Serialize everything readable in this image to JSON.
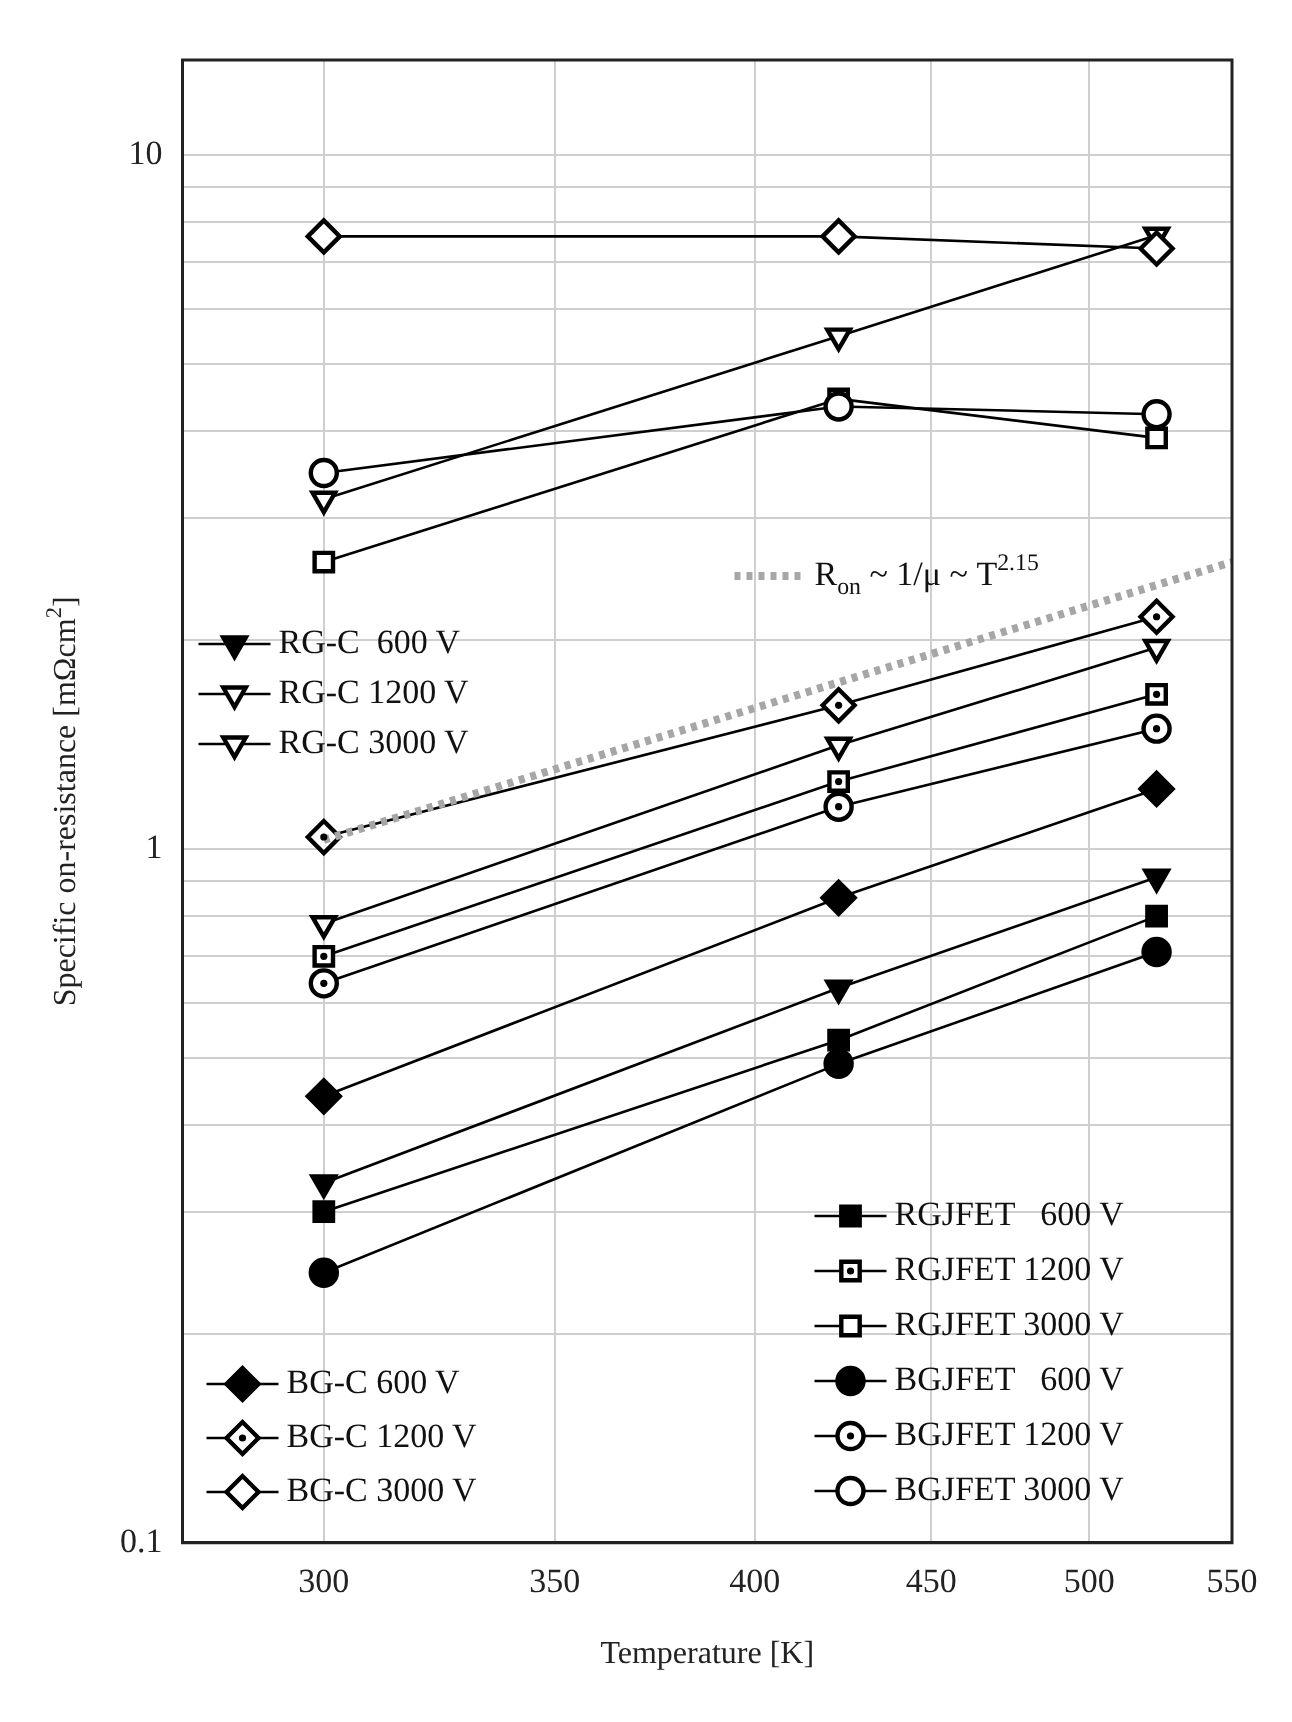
{
  "chart_data": {
    "type": "line",
    "xlabel": "Temperature [K]",
    "ylabel": "Specific on-resistance [mΩcm$^{2}$]",
    "x": [
      300,
      423,
      523
    ],
    "xlim": [
      273,
      550
    ],
    "xticks": [
      300,
      350,
      400,
      450,
      500,
      550
    ],
    "ylim": [
      0.1,
      13.7
    ],
    "yticks": [
      0.1,
      {
        "value": 0.2,
        "label": null
      },
      {
        "value": 0.3,
        "label": null
      },
      {
        "value": 0.4,
        "label": null
      },
      {
        "value": 0.5,
        "label": null
      },
      {
        "value": 0.6,
        "label": null
      },
      {
        "value": 0.7,
        "label": null
      },
      {
        "value": 0.8,
        "label": null
      },
      {
        "value": 0.9,
        "label": null
      },
      1,
      {
        "value": 2,
        "label": null
      },
      {
        "value": 3,
        "label": null
      },
      {
        "value": 4,
        "label": null
      },
      {
        "value": 5,
        "label": null
      },
      {
        "value": 6,
        "label": null
      },
      {
        "value": 7,
        "label": null
      },
      {
        "value": 8,
        "label": null
      },
      {
        "value": 9,
        "label": null
      },
      10
    ],
    "log": "xy",
    "grid": true,
    "legend": "left",
    "line_style": "solid",
    "series": [
      {
        "name": "RG-C  600 V",
        "color": "#000000",
        "marker": "triangle",
        "values": [
          0.33,
          0.63,
          0.91
        ]
      },
      {
        "name": "RG-C 1200 V",
        "color": "#000000",
        "marker": "triangle",
        "values": [
          0.78,
          1.41,
          1.95
        ]
      },
      {
        "name": "RG-C 3000 V",
        "color": "#000000",
        "marker": "triangle",
        "values": [
          3.19,
          5.48,
          7.66
        ]
      },
      {
        "name": "BG-C 600 V",
        "color": "#000000",
        "marker": "diamond",
        "values": [
          0.44,
          0.85,
          1.22
        ]
      },
      {
        "name": "BG-C 1200 V",
        "color": "#000000",
        "marker": "diamond",
        "values": [
          1.04,
          1.61,
          2.16
        ]
      },
      {
        "name": "BG-C 3000 V",
        "color": "#000000",
        "marker": "diamond",
        "values": [
          7.63,
          7.63,
          7.33
        ]
      },
      {
        "name": "RGJFET   600 V",
        "color": "#000000",
        "marker": "square",
        "values": [
          0.3,
          0.53,
          0.8
        ]
      },
      {
        "name": "RGJFET 1200 V",
        "color": "#000000",
        "marker": "square",
        "values": [
          0.7,
          1.25,
          1.67
        ]
      },
      {
        "name": "RGJFET 3000 V",
        "color": "#000000",
        "marker": "square",
        "values": [
          2.59,
          4.45,
          3.91
        ]
      },
      {
        "name": "BGJFET   600 V",
        "color": "#000000",
        "marker": "circle",
        "values": [
          0.245,
          0.49,
          0.71
        ]
      },
      {
        "name": "BGJFET 1200 V",
        "color": "#000000",
        "marker": "circle",
        "values": [
          0.64,
          1.15,
          1.49
        ]
      },
      {
        "name": "BGJFET 3000 V",
        "color": "#000000",
        "marker": "circle",
        "values": [
          3.48,
          4.34,
          4.23
        ]
      },
      {
        "name": "R$_{on}$ ~ 1/μ ~ T$^{2.15}$",
        "type": "line",
        "color": "#a6a6a6",
        "line_style": "dotted",
        "x": [
          300,
          550
        ],
        "values": [
          1.03,
          2.59
        ]
      }
    ]
  }
}
